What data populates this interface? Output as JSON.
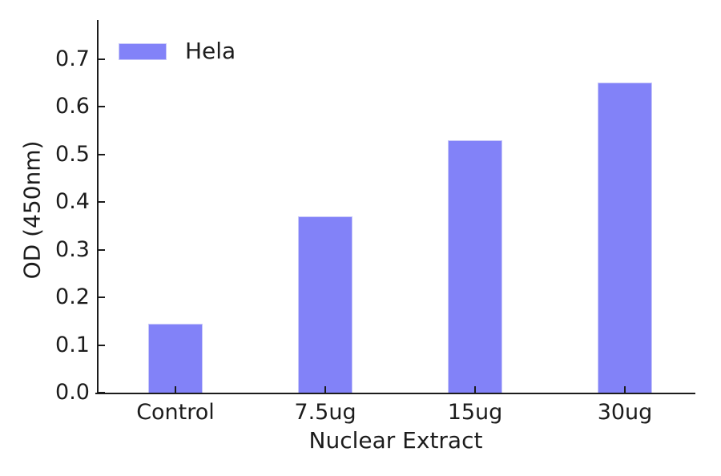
{
  "chart_data": {
    "type": "bar",
    "title": "",
    "xlabel": "Nuclear Extract",
    "ylabel": "OD (450nm)",
    "categories": [
      "Control",
      "7.5ug",
      "15ug",
      "30ug"
    ],
    "series": [
      {
        "name": "Hela",
        "values": [
          0.145,
          0.37,
          0.53,
          0.65
        ]
      }
    ],
    "ylim": [
      0.0,
      0.78
    ],
    "yticks": [
      0.0,
      0.1,
      0.2,
      0.3,
      0.4,
      0.5,
      0.6,
      0.7
    ],
    "ytick_labels": [
      "0.0",
      "0.1",
      "0.2",
      "0.3",
      "0.4",
      "0.5",
      "0.6",
      "0.7"
    ],
    "legend": {
      "entries": [
        "Hela"
      ],
      "position": "upper-left"
    },
    "grid": false,
    "colors": {
      "bar_fill": "#8282f8",
      "bar_edge": "#c9c9f9",
      "axis": "#1c1c1c",
      "text": "#1c1c1c",
      "background": "#ffffff"
    }
  }
}
